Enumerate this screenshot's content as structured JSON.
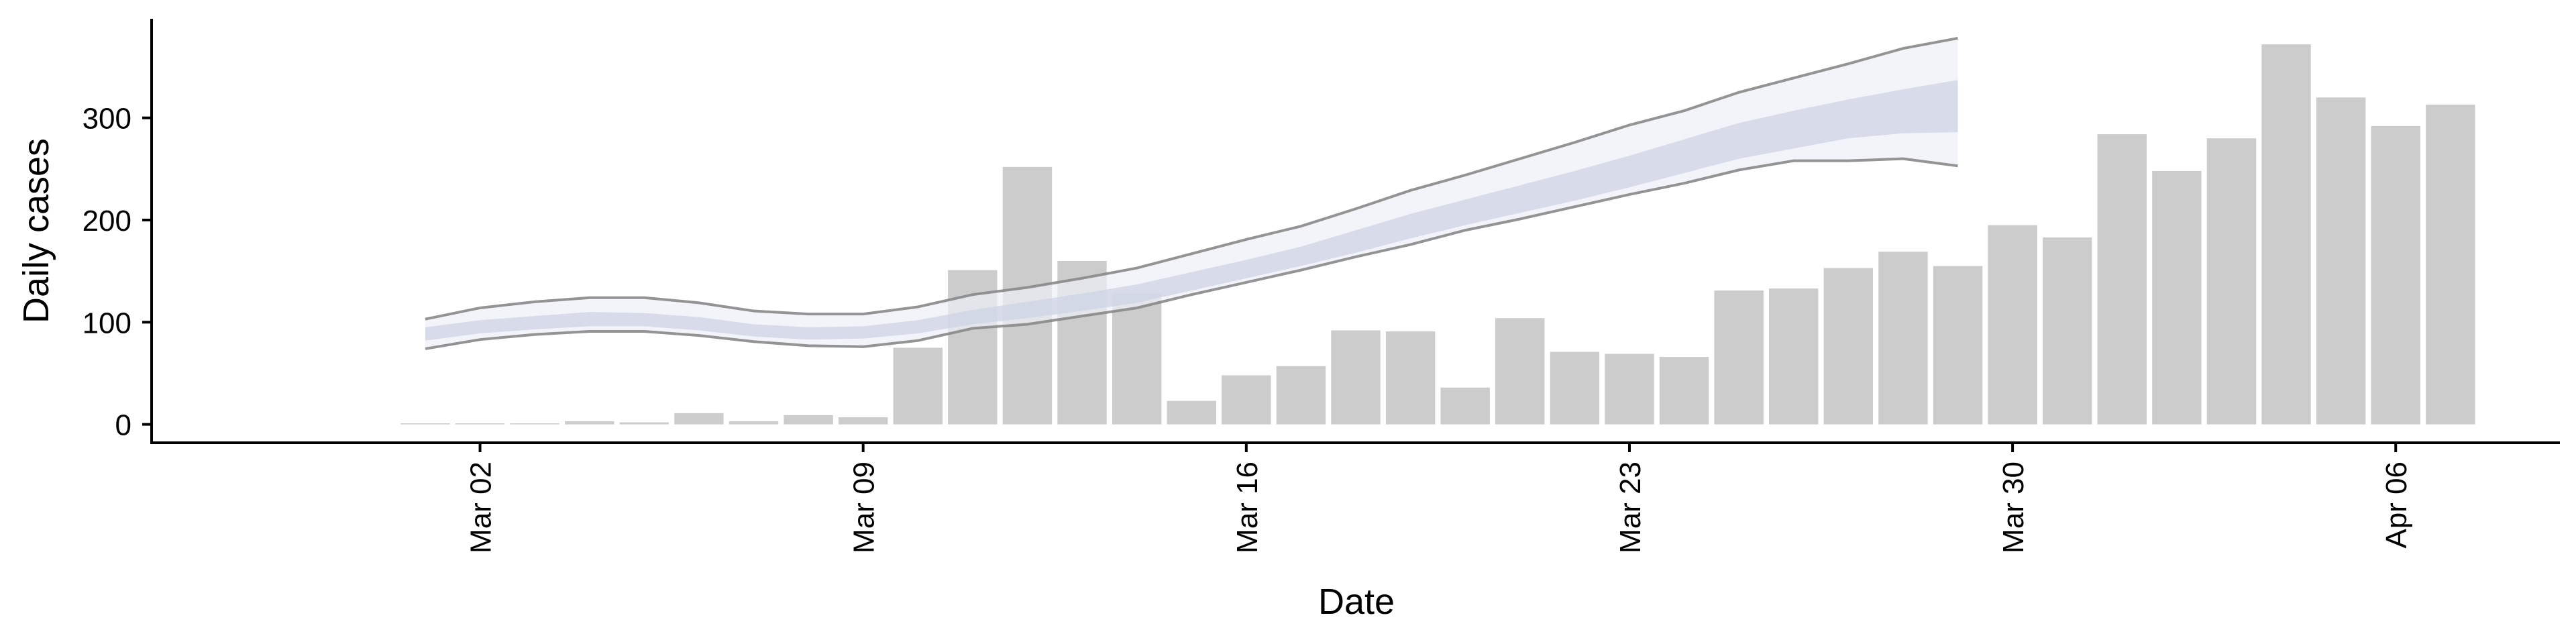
{
  "chart_data": {
    "type": "bar",
    "xlabel": "Date",
    "ylabel": "Daily cases",
    "ylim": [
      -18,
      397
    ],
    "y_ticks": [
      0,
      100,
      200,
      300
    ],
    "x_ticks": [
      {
        "label": "Mar 02",
        "date": "2020-03-02"
      },
      {
        "label": "Mar 09",
        "date": "2020-03-09"
      },
      {
        "label": "Mar 16",
        "date": "2020-03-16"
      },
      {
        "label": "Mar 23",
        "date": "2020-03-23"
      },
      {
        "label": "Mar 30",
        "date": "2020-03-30"
      },
      {
        "label": "Apr 06",
        "date": "2020-04-06"
      }
    ],
    "x_range": [
      "2020-02-25",
      "2020-04-09"
    ],
    "grid": false,
    "colors": {
      "bars": "#cccccc",
      "band_outer": "#eef0f6",
      "band_inner": "#cdd3e4",
      "band_edge": "#888888"
    },
    "daily_cases": {
      "dates": [
        "2020-03-01",
        "2020-03-02",
        "2020-03-03",
        "2020-03-04",
        "2020-03-05",
        "2020-03-06",
        "2020-03-07",
        "2020-03-08",
        "2020-03-09",
        "2020-03-10",
        "2020-03-11",
        "2020-03-12",
        "2020-03-13",
        "2020-03-14",
        "2020-03-15",
        "2020-03-16",
        "2020-03-17",
        "2020-03-18",
        "2020-03-19",
        "2020-03-20",
        "2020-03-21",
        "2020-03-22",
        "2020-03-23",
        "2020-03-24",
        "2020-03-25",
        "2020-03-26",
        "2020-03-27",
        "2020-03-28",
        "2020-03-29",
        "2020-03-30",
        "2020-03-31",
        "2020-04-01",
        "2020-04-02",
        "2020-04-03",
        "2020-04-04",
        "2020-04-05",
        "2020-04-06",
        "2020-04-07"
      ],
      "values": [
        1,
        1,
        1,
        3,
        2,
        11,
        3,
        9,
        7,
        75,
        151,
        252,
        160,
        128,
        23,
        48,
        57,
        92,
        91,
        36,
        104,
        71,
        69,
        66,
        131,
        133,
        153,
        169,
        155,
        195,
        183,
        284,
        248,
        280,
        372,
        320,
        292,
        313
      ]
    },
    "estimate_band": {
      "dates": [
        "2020-03-01",
        "2020-03-02",
        "2020-03-03",
        "2020-03-04",
        "2020-03-05",
        "2020-03-06",
        "2020-03-07",
        "2020-03-08",
        "2020-03-09",
        "2020-03-10",
        "2020-03-11",
        "2020-03-12",
        "2020-03-13",
        "2020-03-14",
        "2020-03-15",
        "2020-03-16",
        "2020-03-17",
        "2020-03-18",
        "2020-03-19",
        "2020-03-20",
        "2020-03-21",
        "2020-03-22",
        "2020-03-23",
        "2020-03-24",
        "2020-03-25",
        "2020-03-26",
        "2020-03-27",
        "2020-03-28",
        "2020-03-29"
      ],
      "upper90": [
        103,
        114,
        120,
        124,
        124,
        119,
        111,
        108,
        108,
        115,
        127,
        134,
        143,
        153,
        167,
        181,
        194,
        211,
        229,
        244,
        260,
        276,
        293,
        307,
        325,
        339,
        353,
        368,
        378
      ],
      "upper50": [
        95,
        102,
        106,
        110,
        109,
        105,
        98,
        95,
        96,
        102,
        112,
        120,
        128,
        137,
        149,
        161,
        174,
        190,
        206,
        220,
        234,
        248,
        263,
        279,
        295,
        307,
        318,
        328,
        337
      ],
      "lower50": [
        82,
        89,
        93,
        96,
        96,
        92,
        86,
        83,
        84,
        89,
        98,
        104,
        111,
        119,
        131,
        143,
        155,
        168,
        182,
        195,
        207,
        219,
        232,
        246,
        260,
        270,
        280,
        285,
        286
      ],
      "lower90": [
        74,
        83,
        88,
        91,
        91,
        87,
        81,
        77,
        76,
        82,
        94,
        98,
        106,
        114,
        127,
        139,
        151,
        164,
        176,
        190,
        201,
        213,
        225,
        236,
        249,
        258,
        258,
        260,
        253
      ]
    }
  }
}
